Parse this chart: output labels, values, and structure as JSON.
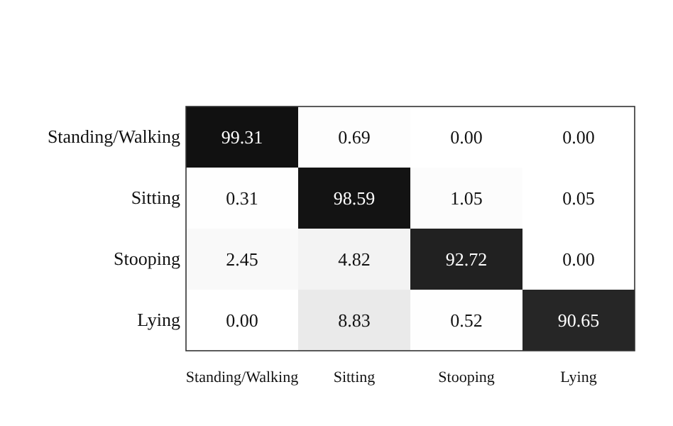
{
  "chart_data": {
    "type": "heatmap",
    "categories": [
      "Standing/Walking",
      "Sitting",
      "Stooping",
      "Lying"
    ],
    "y_categories": [
      "Standing/Walking",
      "Sitting",
      "Stooping",
      "Lying"
    ],
    "cells": [
      [
        99.31,
        0.69,
        0.0,
        0.0
      ],
      [
        0.31,
        98.59,
        1.05,
        0.05
      ],
      [
        2.45,
        4.82,
        92.72,
        0.0
      ],
      [
        0.0,
        8.83,
        0.52,
        90.65
      ]
    ],
    "cell_labels": [
      [
        "99.31",
        "0.69",
        "0.00",
        "0.00"
      ],
      [
        "0.31",
        "98.59",
        "1.05",
        "0.05"
      ],
      [
        "2.45",
        "4.82",
        "92.72",
        "0.00"
      ],
      [
        "0.00",
        "8.83",
        "0.52",
        "90.65"
      ]
    ]
  }
}
